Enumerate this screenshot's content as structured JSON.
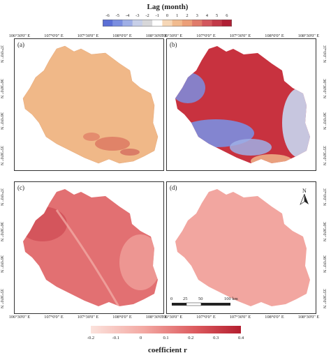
{
  "top_legend": {
    "title": "Lag (month)",
    "ticks": [
      "-6",
      "-5",
      "-4",
      "-3",
      "-2",
      "-1",
      "0",
      "1",
      "2",
      "3",
      "4",
      "5",
      "6"
    ],
    "colors": [
      "#5b6fd6",
      "#7b8ee0",
      "#9fafe6",
      "#c7cfe8",
      "#d7d7d9",
      "#ffffff",
      "#f6d7b7",
      "#f1bb8e",
      "#ec9f78",
      "#e07b6a",
      "#d3575d",
      "#c23a48",
      "#b02035"
    ]
  },
  "bottom_legend": {
    "title": "coefficient r",
    "ticks": [
      "-0.2",
      "-0.1",
      "0",
      "0.1",
      "0.2",
      "0.3",
      "0.4"
    ]
  },
  "longitude_labels": [
    "106°30'0\" E",
    "107°0'0\" E",
    "107°30'0\" E",
    "108°0'0\" E",
    "108°30'0\" E"
  ],
  "latitude_labels": [
    "37°0'0\" N",
    "36°30'0\" N",
    "36°0'0\" N",
    "35°30'0\" N"
  ],
  "panels": [
    {
      "label": "(a)",
      "fill": "#f0b888"
    },
    {
      "label": "(b)",
      "fill": "#c8323f"
    },
    {
      "label": "(c)",
      "fill": "#e27072"
    },
    {
      "label": "(d)",
      "fill": "#f2a6a0"
    }
  ],
  "north_label": "N",
  "scale_bar": {
    "labels": [
      "0",
      "25",
      "50",
      "100 km"
    ]
  }
}
